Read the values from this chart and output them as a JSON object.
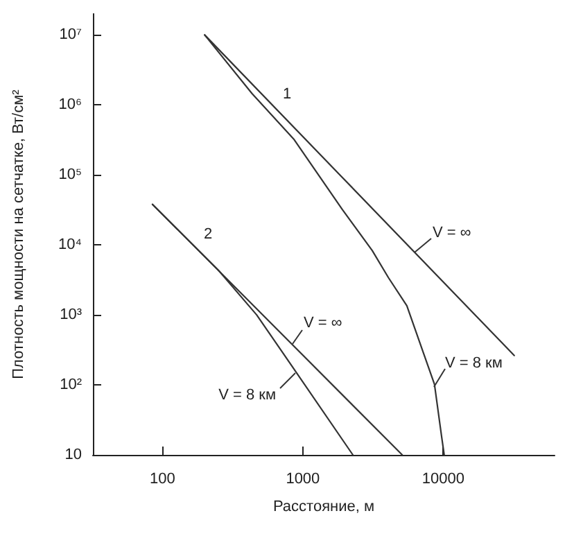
{
  "chart_data": {
    "type": "line",
    "xlabel": "Расстояние, м",
    "ylabel": "Плотность мощности на сетчатке, Вт/см²",
    "log": "xy",
    "grid": false,
    "marker": "none",
    "line_style": "solid",
    "xlim": [
      32,
      62000
    ],
    "xticks": [
      100,
      1000,
      10000
    ],
    "ylim": [
      10,
      20000000
    ],
    "yticks": [
      10,
      {
        "value": 100,
        "label": "10²"
      },
      {
        "value": 1000,
        "label": "10³"
      },
      {
        "value": 10000,
        "label": "10⁴"
      },
      {
        "value": 100000,
        "label": "10⁵"
      },
      {
        "value": 1000000,
        "label": "10⁶"
      },
      {
        "value": 10000000,
        "label": "10⁷"
      }
    ],
    "series": [
      {
        "color": "#333333",
        "x": [
          200,
          32000
        ],
        "values": [
          10000000,
          263
        ]
      },
      {
        "color": "#333333",
        "x": [
          200,
          435,
          867,
          1910,
          3120,
          4070,
          5500,
          8650,
          9700,
          10150
        ],
        "values": [
          10000000,
          1450000,
          320000,
          32000,
          8300,
          3400,
          1350,
          102,
          19,
          10
        ]
      },
      {
        "color": "#333333",
        "x": [
          85,
          5100
        ],
        "values": [
          38000,
          10
        ]
      },
      {
        "color": "#333333",
        "x": [
          85,
          250,
          469,
          900,
          2270
        ],
        "values": [
          38000,
          4360,
          1000,
          150,
          10
        ]
      }
    ],
    "annotations": [
      "1",
      "2",
      "V = ∞",
      "V = ∞",
      "V = 8 км",
      "V = 8 км"
    ]
  }
}
